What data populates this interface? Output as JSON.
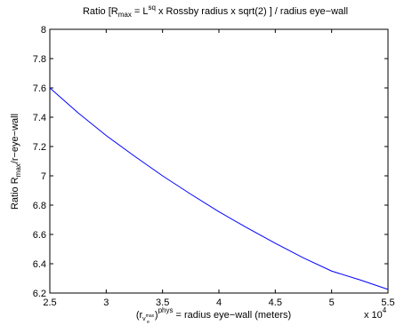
{
  "chart_data": {
    "type": "line",
    "title": "Ratio [R_max = L^sq x Rossby radius x sqrt(2) ] / radius eye-wall",
    "title_parts": {
      "before_sub": "Ratio [R",
      "sub": "max",
      "middle": " = L",
      "sup": "sq",
      "after": " x Rossby radius x sqrt(2) ] / radius eye−wall"
    },
    "xlabel": "(r_{v_e^max})^phys = radius eye-wall (meters)",
    "xlabel_parts": {
      "open": "(r",
      "sub1": "v",
      "sub2": "max",
      "sub3": "e",
      "close": ")",
      "sup": "phys",
      "rest": " = radius eye−wall (meters)"
    },
    "ylabel": "Ratio R_max/r-eye-wall",
    "ylabel_parts": {
      "before_sub": "Ratio R",
      "sub": "max",
      "after": "/r−eye−wall"
    },
    "x_multiplier": "x 10",
    "x_multiplier_exp": "4",
    "xlim": [
      2.5,
      5.5
    ],
    "ylim": [
      6.2,
      8.0
    ],
    "x_ticks": [
      "2.5",
      "3",
      "3.5",
      "4",
      "4.5",
      "5",
      "5.5"
    ],
    "y_ticks": [
      "6.2",
      "6.4",
      "6.6",
      "6.8",
      "7",
      "7.2",
      "7.4",
      "7.6",
      "7.8",
      "8"
    ],
    "grid": false,
    "series": [
      {
        "color": "#0000ff",
        "x": [
          2.5,
          2.75,
          3.0,
          3.25,
          3.5,
          3.75,
          4.0,
          4.25,
          4.5,
          4.75,
          5.0,
          5.25,
          5.5
        ],
        "y": [
          7.6,
          7.43,
          7.275,
          7.135,
          7.0,
          6.875,
          6.755,
          6.645,
          6.54,
          6.44,
          6.35,
          6.29,
          6.225
        ]
      }
    ]
  }
}
